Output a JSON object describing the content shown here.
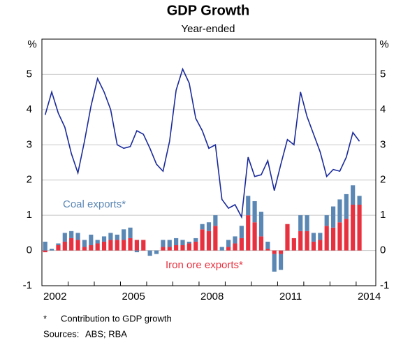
{
  "chart_data": {
    "type": "bar-line",
    "title": "GDP Growth",
    "subtitle": "Year-ended",
    "y_unit": "%",
    "y2_unit": "%",
    "categories": [
      "2002",
      null,
      null,
      null,
      null,
      null,
      null,
      null,
      null,
      null,
      null,
      null,
      "2005",
      null,
      null,
      null,
      null,
      null,
      null,
      null,
      null,
      null,
      null,
      null,
      "2008",
      null,
      null,
      null,
      null,
      null,
      null,
      null,
      null,
      null,
      null,
      null,
      "2011",
      null,
      null,
      null,
      null,
      null,
      null,
      null,
      null,
      null,
      null,
      null,
      "2014"
    ],
    "series": [
      {
        "name": "Iron ore exports*",
        "kind": "bar",
        "color": "#e8313f",
        "values": [
          -0.05,
          0,
          0.15,
          0.25,
          0.35,
          0.3,
          0.1,
          0.15,
          0.2,
          0.25,
          0.3,
          0.3,
          0.3,
          0.35,
          0.3,
          0.3,
          0,
          0,
          0.1,
          0.1,
          0.15,
          0.15,
          0.2,
          0.25,
          0.6,
          0.55,
          0.7,
          0,
          0.1,
          0.2,
          0.35,
          1.0,
          0.8,
          0.4,
          0.05,
          -0.1,
          -0.1,
          0.75,
          0.35,
          0.55,
          0.55,
          0.25,
          0.3,
          0.7,
          0.65,
          0.8,
          0.9,
          1.3,
          1.3
        ]
      },
      {
        "name": "Coal exports*",
        "kind": "bar",
        "color": "#5b87b4",
        "values": [
          0.25,
          0.05,
          0.05,
          0.25,
          0.2,
          0.2,
          0.2,
          0.3,
          0.1,
          0.15,
          0.2,
          0.15,
          0.3,
          0.3,
          -0.05,
          0,
          -0.15,
          -0.1,
          0.2,
          0.2,
          0.2,
          0.15,
          0.05,
          0.1,
          0.15,
          0.25,
          0.3,
          0.1,
          0.2,
          0.2,
          0.35,
          0.55,
          0.6,
          0.7,
          0.2,
          -0.5,
          -0.45,
          0,
          0,
          0.45,
          0.45,
          0.25,
          0.2,
          0.3,
          0.6,
          0.65,
          0.7,
          0.55,
          0.25
        ]
      },
      {
        "name": "GDP growth",
        "kind": "line",
        "color": "#1a2a9a",
        "values": [
          3.85,
          4.5,
          3.9,
          3.5,
          2.75,
          2.2,
          3.1,
          4.1,
          4.88,
          4.5,
          4.0,
          3.0,
          2.9,
          2.95,
          3.4,
          3.3,
          2.9,
          2.45,
          2.25,
          3.1,
          4.55,
          5.15,
          4.75,
          3.75,
          3.4,
          2.9,
          3.0,
          1.45,
          1.2,
          1.3,
          0.95,
          2.65,
          2.1,
          2.15,
          2.55,
          1.7,
          2.45,
          3.15,
          3.0,
          4.5,
          3.8,
          3.3,
          2.8,
          2.1,
          2.3,
          2.25,
          2.65,
          3.35,
          3.1
        ]
      }
    ],
    "ylim": [
      -1,
      6
    ],
    "yticks": [
      -1,
      0,
      1,
      2,
      3,
      4,
      5
    ],
    "y2lim": [
      -1,
      6
    ],
    "y2ticks": [
      -1,
      0,
      1,
      2,
      3,
      4,
      5
    ],
    "grid": true,
    "footnote": {
      "marker": "*",
      "text": "Contribution to GDP growth"
    },
    "sources": {
      "label": "Sources:",
      "text": "ABS; RBA"
    }
  }
}
